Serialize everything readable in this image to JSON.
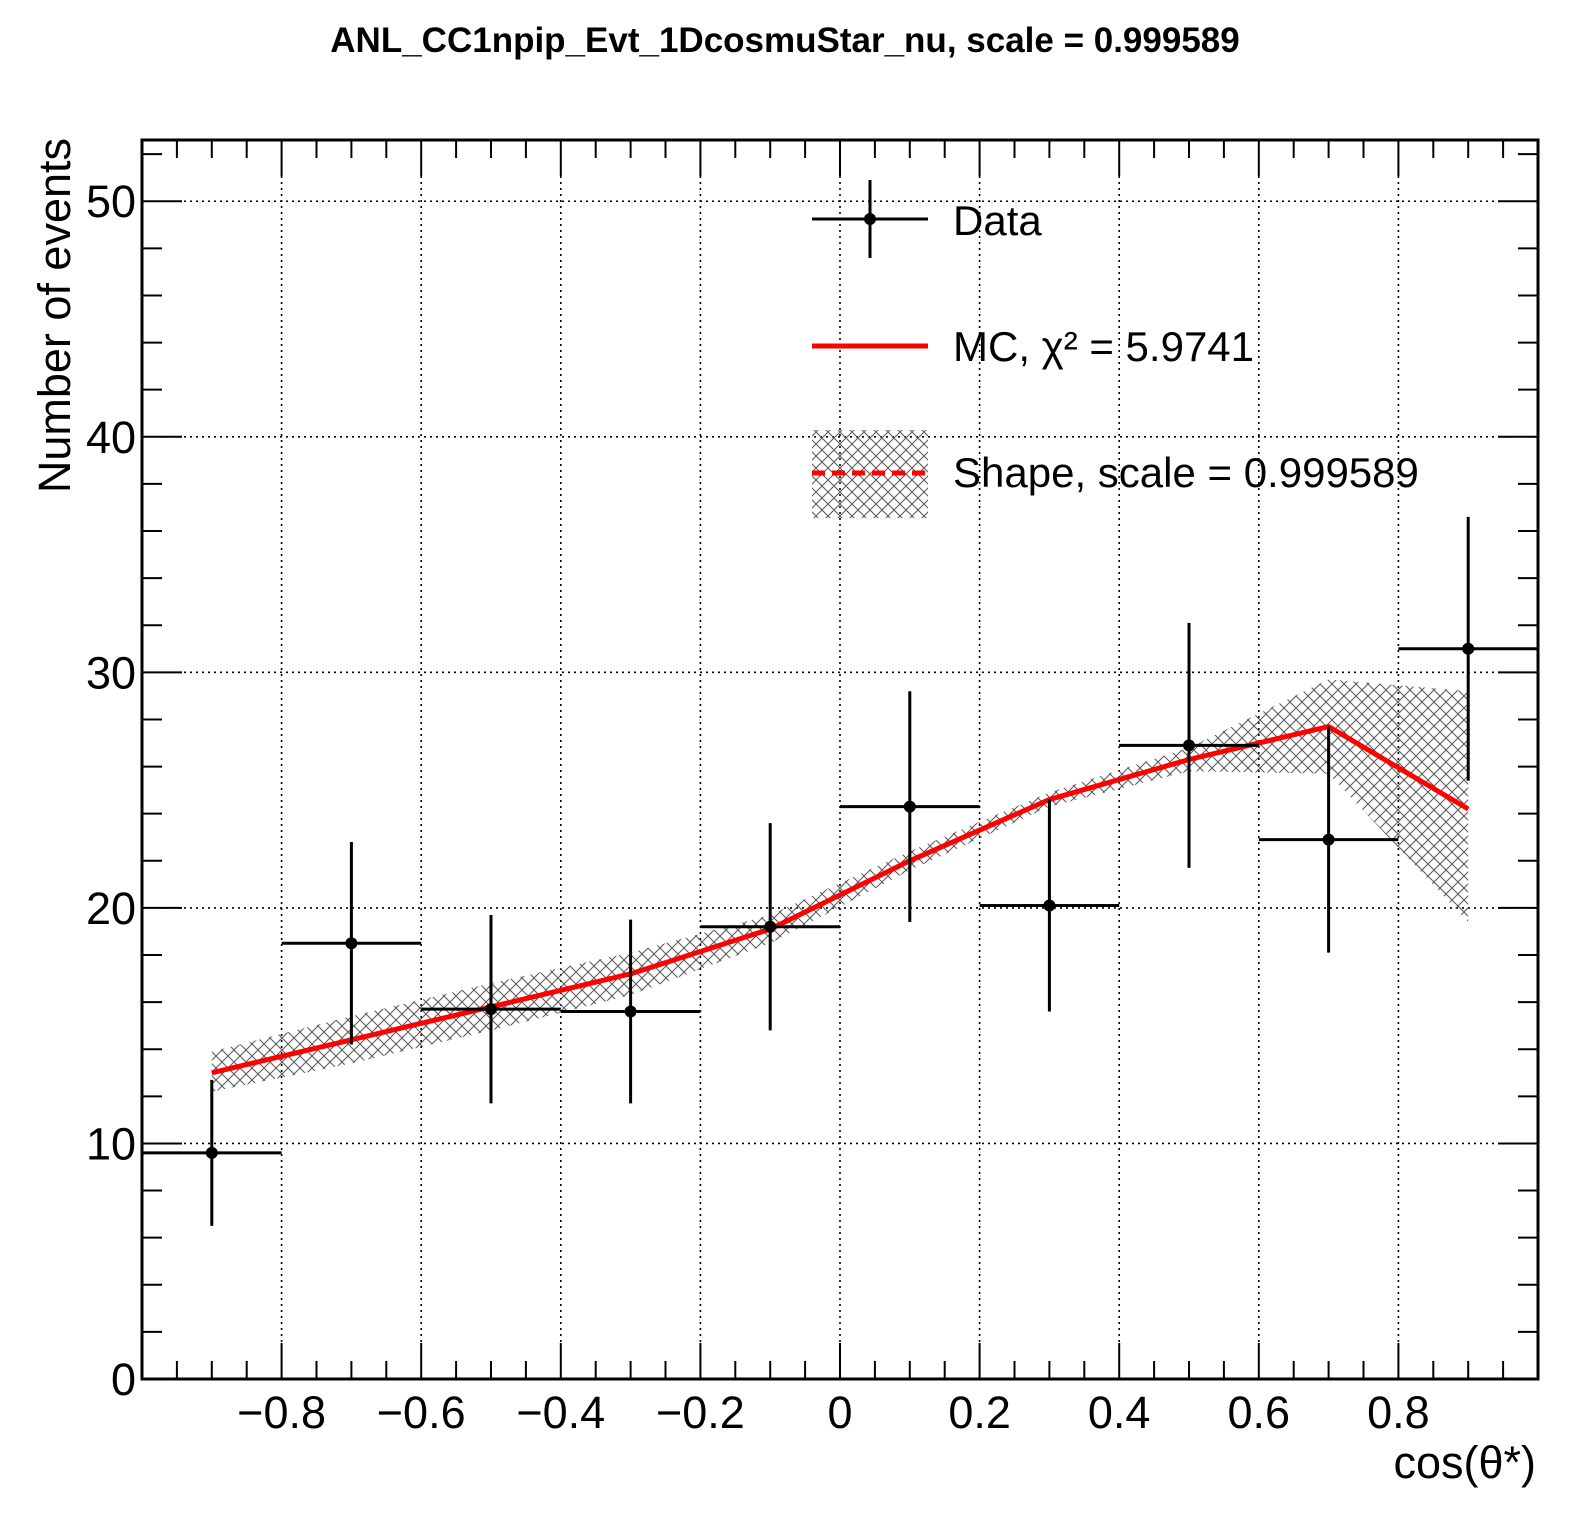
{
  "chart_data": {
    "type": "scatter",
    "title": "ANL_CC1npip_Evt_1DcosmuStar_nu, scale = 0.999589",
    "xlabel": "cos(θ*)",
    "ylabel": "Number of events",
    "xlim": [
      -1.0,
      1.0
    ],
    "ylim": [
      0,
      52.6
    ],
    "grid": true,
    "legend_position": "top-center",
    "x_ticks": [
      -0.8,
      -0.6,
      -0.4,
      -0.2,
      0,
      0.2,
      0.4,
      0.6,
      0.8
    ],
    "x_tick_labels": [
      "−0.8",
      "−0.6",
      "−0.4",
      "−0.2",
      "0",
      "0.2",
      "0.4",
      "0.6",
      "0.8"
    ],
    "y_ticks": [
      0,
      10,
      20,
      30,
      40,
      50
    ],
    "y_tick_labels": [
      "0",
      "10",
      "20",
      "30",
      "40",
      "50"
    ],
    "series": [
      {
        "name": "Data",
        "kind": "points_with_errors",
        "color": "#000000",
        "x": [
          -0.9,
          -0.7,
          -0.5,
          -0.3,
          -0.1,
          0.1,
          0.3,
          0.5,
          0.7,
          0.9
        ],
        "x_err": [
          0.1,
          0.1,
          0.1,
          0.1,
          0.1,
          0.1,
          0.1,
          0.1,
          0.1,
          0.1
        ],
        "y": [
          9.6,
          18.5,
          15.7,
          15.6,
          19.2,
          24.3,
          20.1,
          26.9,
          22.9,
          31.0
        ],
        "y_err": [
          3.1,
          4.3,
          4.0,
          3.9,
          4.4,
          4.9,
          4.5,
          5.2,
          4.8,
          5.6
        ]
      },
      {
        "name": "MC, χ² = 5.9741",
        "kind": "line",
        "color": "#ff0000",
        "x": [
          -0.9,
          -0.7,
          -0.5,
          -0.3,
          -0.1,
          0.1,
          0.3,
          0.5,
          0.7,
          0.9
        ],
        "y": [
          13.0,
          14.4,
          15.8,
          17.2,
          19.1,
          22.0,
          24.6,
          26.3,
          27.7,
          24.2
        ]
      },
      {
        "name": "Shape, scale = 0.999589",
        "kind": "band",
        "color": "#ff0000",
        "hatch_color": "#555555",
        "x": [
          -0.9,
          -0.7,
          -0.5,
          -0.3,
          -0.1,
          0.1,
          0.3,
          0.5,
          0.7,
          0.9
        ],
        "y": [
          13.0,
          14.4,
          15.8,
          17.2,
          19.1,
          22.0,
          24.6,
          26.3,
          27.7,
          24.2
        ],
        "y_low": [
          12.2,
          13.4,
          14.8,
          16.3,
          18.5,
          21.6,
          24.3,
          25.8,
          25.7,
          19.4
        ],
        "y_high": [
          13.9,
          15.4,
          16.8,
          18.1,
          19.7,
          22.4,
          24.9,
          26.8,
          29.7,
          29.2
        ]
      }
    ]
  }
}
